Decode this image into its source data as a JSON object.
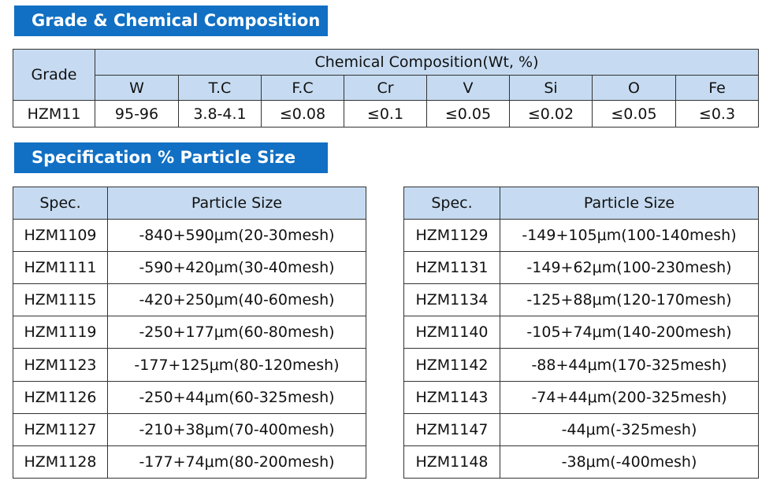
{
  "composition": {
    "title": "Grade & Chemical Composition",
    "grade_header": "Grade",
    "group_header": "Chemical Composition(Wt, %)",
    "columns": [
      "W",
      "T.C",
      "F.C",
      "Cr",
      "V",
      "Si",
      "O",
      "Fe"
    ],
    "rows": [
      [
        "HZM11",
        "95-96",
        "3.8-4.1",
        "≤0.08",
        "≤0.1",
        "≤0.05",
        "≤0.02",
        "≤0.05",
        "≤0.3"
      ]
    ]
  },
  "specification": {
    "title": "Specification % Particle Size",
    "tables": [
      {
        "headers": [
          "Spec.",
          "Particle Size"
        ],
        "rows": [
          [
            "HZM1109",
            "-840+590μm(20-30mesh)"
          ],
          [
            "HZM1111",
            "-590+420μm(30-40mesh)"
          ],
          [
            "HZM1115",
            "-420+250μm(40-60mesh)"
          ],
          [
            "HZM1119",
            "-250+177μm(60-80mesh)"
          ],
          [
            "HZM1123",
            "-177+125μm(80-120mesh)"
          ],
          [
            "HZM1126",
            "-250+44μm(60-325mesh)"
          ],
          [
            "HZM1127",
            "-210+38μm(70-400mesh)"
          ],
          [
            "HZM1128",
            "-177+74μm(80-200mesh)"
          ]
        ]
      },
      {
        "headers": [
          "Spec.",
          "Particle Size"
        ],
        "rows": [
          [
            "HZM1129",
            "-149+105μm(100-140mesh)"
          ],
          [
            "HZM1131",
            "-149+62μm(100-230mesh)"
          ],
          [
            "HZM1134",
            "-125+88μm(120-170mesh)"
          ],
          [
            "HZM1140",
            "-105+74μm(140-200mesh)"
          ],
          [
            "HZM1142",
            "-88+44μm(170-325mesh)"
          ],
          [
            "HZM1143",
            "-74+44μm(200-325mesh)"
          ],
          [
            "HZM1147",
            "-44μm(-325mesh)"
          ],
          [
            "HZM1148",
            "-38μm(-400mesh)"
          ]
        ]
      }
    ]
  }
}
